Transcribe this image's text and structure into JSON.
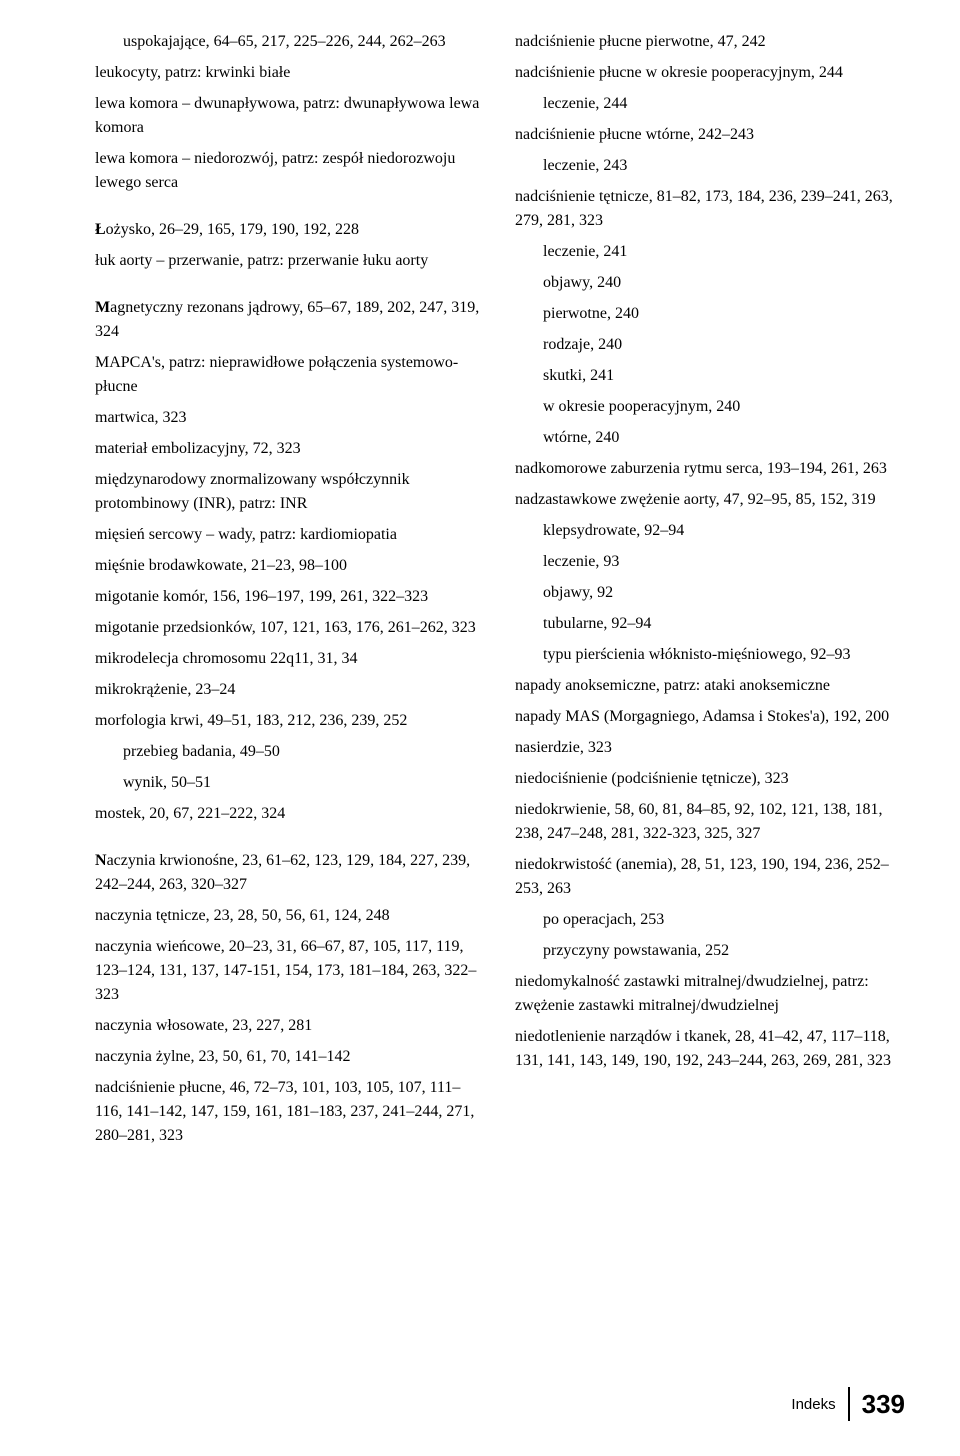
{
  "left": [
    {
      "t": "uspokajające, 64–65, 217, 225–226, 244, 262–263",
      "cls": "sub"
    },
    {
      "t": "leukocyty, patrz: krwinki białe"
    },
    {
      "t": "lewa komora – dwunapływowa, patrz: dwunapływowa lewa komora"
    },
    {
      "t": "lewa komora – niedorozwój, patrz: zespół niedorozwoju lewego serca"
    },
    {
      "spacer": true
    },
    {
      "lead": "Ł",
      "t": "ożysko, 26–29, 165, 179, 190, 192, 228"
    },
    {
      "t": "łuk aorty – przerwanie, patrz: przerwanie łuku aorty"
    },
    {
      "spacer": true
    },
    {
      "lead": "M",
      "t": "agnetyczny rezonans jądrowy, 65–67, 189, 202, 247, 319, 324"
    },
    {
      "t": "MAPCA's, patrz: nieprawidłowe połączenia systemowo-płucne"
    },
    {
      "t": "martwica, 323"
    },
    {
      "t": "materiał embolizacyjny, 72, 323"
    },
    {
      "t": "międzynarodowy znormalizowany współczynnik protombinowy (INR), patrz: INR"
    },
    {
      "t": "mięsień sercowy – wady, patrz: kardiomiopatia"
    },
    {
      "t": "mięśnie brodawkowate, 21–23, 98–100"
    },
    {
      "t": "migotanie komór, 156, 196–197, 199, 261, 322–323"
    },
    {
      "t": "migotanie przedsionków, 107, 121, 163, 176, 261–262, 323"
    },
    {
      "t": "mikrodelecja chromosomu 22q11, 31, 34"
    },
    {
      "t": "mikrokrążenie, 23–24"
    },
    {
      "t": "morfologia krwi, 49–51, 183, 212, 236, 239, 252"
    },
    {
      "t": "przebieg badania, 49–50",
      "cls": "sub"
    },
    {
      "t": "wynik, 50–51",
      "cls": "sub"
    },
    {
      "t": "mostek, 20, 67, 221–222, 324"
    },
    {
      "spacer": true
    },
    {
      "lead": "N",
      "t": "aczynia krwionośne, 23, 61–62, 123, 129, 184, 227, 239, 242–244, 263, 320–327"
    },
    {
      "t": "naczynia tętnicze, 23, 28, 50, 56, 61, 124, 248"
    },
    {
      "t": "naczynia wieńcowe, 20–23, 31, 66–67, 87, 105, 117, 119, 123–124, 131, 137, 147-151, 154, 173, 181–184, 263, 322–323"
    },
    {
      "t": "naczynia włosowate, 23, 227, 281"
    },
    {
      "t": "naczynia żylne, 23, 50, 61, 70, 141–142"
    },
    {
      "t": "nadciśnienie płucne, 46, 72–73, 101, 103, 105, 107, 111–116, 141–142, 147, 159, 161, 181–183, 237,  241–244, 271, 280–281, 323"
    }
  ],
  "right": [
    {
      "t": "nadciśnienie płucne pierwotne, 47, 242"
    },
    {
      "t": "nadciśnienie płucne w okresie pooperacyjnym, 244"
    },
    {
      "t": "leczenie, 244",
      "cls": "sub"
    },
    {
      "t": "nadciśnienie płucne wtórne, 242–243"
    },
    {
      "t": "leczenie, 243",
      "cls": "sub"
    },
    {
      "t": "nadciśnienie tętnicze, 81–82, 173, 184, 236, 239–241, 263, 279, 281, 323"
    },
    {
      "t": "leczenie, 241",
      "cls": "sub"
    },
    {
      "t": "objawy, 240",
      "cls": "sub"
    },
    {
      "t": "pierwotne, 240",
      "cls": "sub"
    },
    {
      "t": "rodzaje, 240",
      "cls": "sub"
    },
    {
      "t": "skutki, 241",
      "cls": "sub"
    },
    {
      "t": "w okresie pooperacyjnym, 240",
      "cls": "sub"
    },
    {
      "t": "wtórne, 240",
      "cls": "sub"
    },
    {
      "t": "nadkomorowe zaburzenia rytmu serca, 193–194, 261, 263"
    },
    {
      "t": "nadzastawkowe zwężenie aorty, 47, 92–95, 85, 152, 319"
    },
    {
      "t": "klepsydrowate, 92–94",
      "cls": "sub"
    },
    {
      "t": "leczenie, 93",
      "cls": "sub"
    },
    {
      "t": "objawy, 92",
      "cls": "sub"
    },
    {
      "t": "tubularne, 92–94",
      "cls": "sub"
    },
    {
      "t": "typu pierścienia włóknisto-mięśniowego, 92–93",
      "cls": "sub"
    },
    {
      "t": "napady anoksemiczne, patrz: ataki anoksemiczne"
    },
    {
      "t": "napady MAS (Morgagniego, Adamsa i Stokes'a), 192, 200"
    },
    {
      "t": "nasierdzie, 323"
    },
    {
      "t": "niedociśnienie (podciśnienie tętnicze), 323"
    },
    {
      "t": "niedokrwienie, 58, 60, 81, 84–85, 92, 102, 121, 138, 181, 238, 247–248, 281, 322-323, 325, 327"
    },
    {
      "t": "niedokrwistość (anemia), 28, 51, 123, 190, 194, 236, 252–253, 263"
    },
    {
      "t": "po operacjach, 253",
      "cls": "sub"
    },
    {
      "t": "przyczyny powstawania, 252",
      "cls": "sub"
    },
    {
      "t": "niedomykalność zastawki mitralnej/dwudzielnej, patrz: zwężenie zastawki mitralnej/dwudzielnej"
    },
    {
      "t": "niedotlenienie narządów i tkanek, 28, 41–42, 47, 117–118, 131, 141, 143, 149, 190, 192, 243–244, 263, 269, 281, 323"
    }
  ],
  "footer": {
    "label": "Indeks",
    "page": "339"
  }
}
